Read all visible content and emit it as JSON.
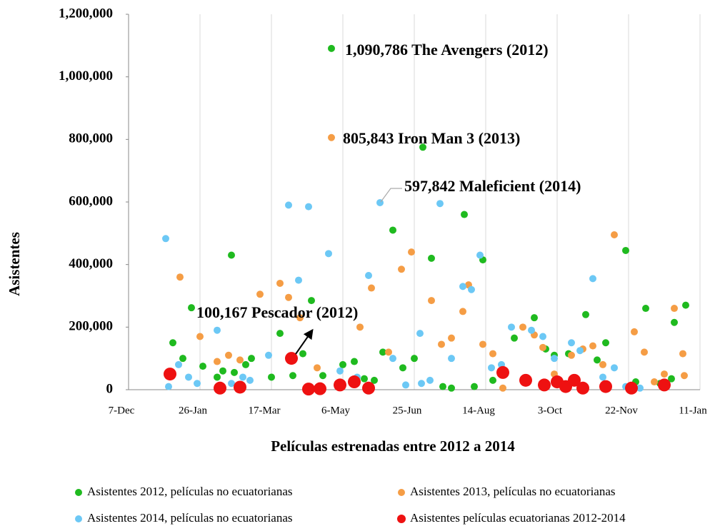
{
  "chart_data": {
    "type": "scatter",
    "xlabel": "Películas estrenadas entre 2012 a 2014",
    "ylabel": "Asistentes",
    "xlim": [
      0,
      400
    ],
    "xticks": [
      {
        "value": 0,
        "label": "7-Dec"
      },
      {
        "value": 50,
        "label": "26-Jan"
      },
      {
        "value": 100,
        "label": "17-Mar"
      },
      {
        "value": 150,
        "label": "6-May"
      },
      {
        "value": 200,
        "label": "25-Jun"
      },
      {
        "value": 250,
        "label": "14-Aug"
      },
      {
        "value": 300,
        "label": "3-Oct"
      },
      {
        "value": 350,
        "label": "22-Nov"
      },
      {
        "value": 400,
        "label": "11-Jan"
      }
    ],
    "ylim": [
      0,
      1200000
    ],
    "yticks": [
      0,
      {
        "value": 200000,
        "label": "200,000"
      },
      {
        "value": 400000,
        "label": "400,000"
      },
      {
        "value": 600000,
        "label": "600,000"
      },
      {
        "value": 800000,
        "label": "800,000"
      },
      {
        "value": 1000000,
        "label": "1,000,000"
      },
      {
        "value": 1200000,
        "label": "1,200,000"
      }
    ],
    "grid": true,
    "legend": "bottom",
    "annotations": [
      "1,090,786 The Avengers (2012)",
      "805,843 Iron Man 3 (2013)",
      "597,842 Maleficient (2014)",
      "100,167 Pescador (2012)"
    ],
    "series": [
      {
        "name": "Asistentes 2012, películas no ecuatorianas",
        "color": "#1fba1f",
        "x": [
          31,
          38,
          44,
          52,
          62,
          66,
          72,
          74,
          86,
          82,
          106,
          100,
          115,
          122,
          128,
          136,
          142,
          150,
          158,
          165,
          172,
          178,
          185,
          192,
          200,
          206,
          212,
          220,
          226,
          235,
          242,
          248,
          255,
          270,
          284,
          292,
          298,
          308,
          320,
          328,
          334,
          348,
          355,
          362,
          372,
          380,
          382,
          390
        ],
        "values": [
          150000,
          100000,
          262000,
          75000,
          40000,
          60000,
          430000,
          55000,
          100000,
          80000,
          180000,
          40000,
          45000,
          115000,
          285000,
          45000,
          1090786,
          80000,
          90000,
          35000,
          30000,
          120000,
          510000,
          70000,
          100000,
          775000,
          420000,
          10000,
          5000,
          560000,
          10000,
          415000,
          30000,
          165000,
          230000,
          130000,
          110000,
          115000,
          240000,
          95000,
          150000,
          445000,
          25000,
          260000,
          20000,
          35000,
          215000,
          270000
        ]
      },
      {
        "name": "Asistentes 2013, películas no ecuatorianas",
        "color": "#f59d45",
        "x": [
          36,
          50,
          62,
          70,
          78,
          92,
          106,
          112,
          120,
          132,
          142,
          162,
          170,
          182,
          191,
          198,
          212,
          219,
          226,
          234,
          238,
          248,
          255,
          262,
          276,
          284,
          290,
          298,
          310,
          318,
          325,
          332,
          340,
          354,
          361,
          368,
          375,
          382,
          388,
          389
        ],
        "values": [
          360000,
          170000,
          90000,
          110000,
          95000,
          305000,
          340000,
          295000,
          230000,
          70000,
          805843,
          200000,
          325000,
          120000,
          385000,
          440000,
          285000,
          145000,
          165000,
          250000,
          335000,
          145000,
          115000,
          5000,
          200000,
          175000,
          135000,
          50000,
          110000,
          130000,
          140000,
          80000,
          495000,
          185000,
          120000,
          25000,
          50000,
          260000,
          115000,
          45000
        ]
      },
      {
        "name": "Asistentes 2014, películas no ecuatorianas",
        "color": "#6cc8f5",
        "x": [
          26,
          35,
          42,
          48,
          62,
          72,
          85,
          98,
          112,
          119,
          126,
          140,
          148,
          160,
          168,
          176,
          185,
          194,
          204,
          211,
          218,
          226,
          234,
          240,
          246,
          254,
          261,
          268,
          282,
          290,
          298,
          310,
          316,
          325,
          332,
          340,
          348,
          358,
          28,
          80,
          205
        ],
        "values": [
          483000,
          80000,
          40000,
          20000,
          190000,
          20000,
          30000,
          110000,
          590000,
          350000,
          585000,
          435000,
          60000,
          40000,
          365000,
          597842,
          100000,
          15000,
          180000,
          30000,
          595000,
          100000,
          330000,
          320000,
          430000,
          70000,
          80000,
          200000,
          190000,
          170000,
          100000,
          150000,
          125000,
          355000,
          40000,
          70000,
          10000,
          5000,
          10000,
          40000,
          20000
        ]
      },
      {
        "name": "Asistentes películas ecuatorianas 2012-2014",
        "color": "#ee1111",
        "x": [
          29,
          64,
          78,
          114,
          126,
          134,
          148,
          158,
          168,
          262,
          278,
          291,
          300,
          306,
          312,
          318,
          334,
          352,
          375
        ],
        "values": [
          50000,
          5000,
          8000,
          100167,
          2000,
          3000,
          15000,
          25000,
          5000,
          55000,
          30000,
          15000,
          25000,
          10000,
          30000,
          5000,
          10000,
          5000,
          15000
        ]
      }
    ]
  }
}
